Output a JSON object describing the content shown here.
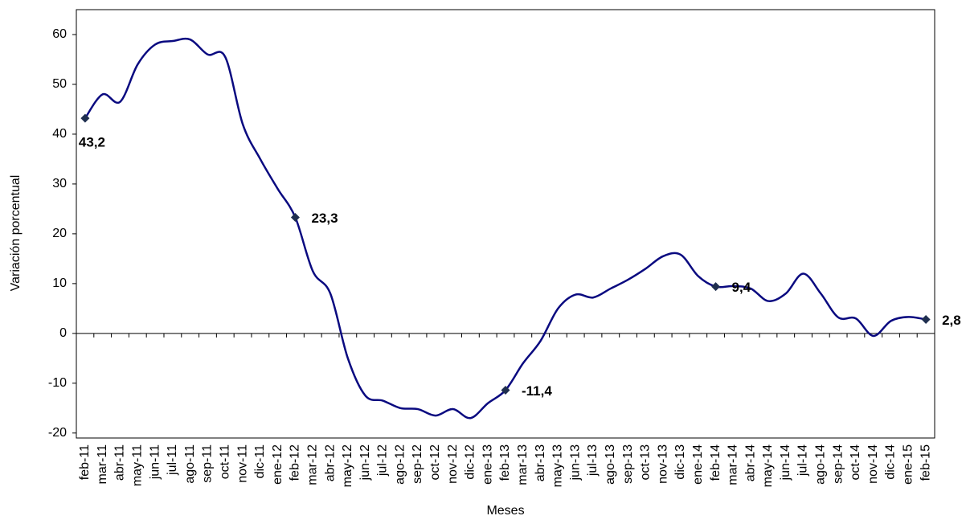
{
  "chart_data": {
    "type": "line",
    "y_label": "Variación porcentual",
    "x_label": "Meses",
    "categories": [
      "feb-11",
      "mar-11",
      "abr-11",
      "may-11",
      "jun-11",
      "jul-11",
      "ago-11",
      "sep-11",
      "oct-11",
      "nov-11",
      "dic-11",
      "ene-12",
      "feb-12",
      "mar-12",
      "abr-12",
      "may-12",
      "jun-12",
      "jul-12",
      "ago-12",
      "sep-12",
      "oct-12",
      "nov-12",
      "dic-12",
      "ene-13",
      "feb-13",
      "mar-13",
      "abr-13",
      "may-13",
      "jun-13",
      "jul-13",
      "ago-13",
      "sep-13",
      "oct-13",
      "nov-13",
      "dic-13",
      "ene-14",
      "feb-14",
      "mar-14",
      "abr-14",
      "may-14",
      "jun-14",
      "jul-14",
      "ago-14",
      "sep-14",
      "oct-14",
      "nov-14",
      "dic-14",
      "ene-15",
      "feb-15"
    ],
    "values": [
      43.2,
      48,
      46.5,
      54,
      58,
      58.7,
      59,
      56,
      55.5,
      42,
      35,
      29,
      23.3,
      12.5,
      8,
      -5,
      -12.5,
      -13.5,
      -15,
      -15.2,
      -16.5,
      -15.2,
      -17,
      -14,
      -11.4,
      -6,
      -1.5,
      5,
      7.8,
      7.2,
      9,
      10.8,
      13,
      15.5,
      15.8,
      11.5,
      9.4,
      9.5,
      9,
      6.5,
      8,
      12,
      8,
      3.2,
      3,
      -0.5,
      2.5,
      3.3,
      2.8
    ],
    "value_labels": [
      "43,2",
      null,
      null,
      null,
      null,
      null,
      null,
      null,
      null,
      null,
      null,
      null,
      "23,3",
      null,
      null,
      null,
      null,
      null,
      null,
      null,
      null,
      null,
      null,
      null,
      "-11,4",
      null,
      null,
      null,
      null,
      null,
      null,
      null,
      null,
      null,
      null,
      null,
      "9,4",
      null,
      null,
      null,
      null,
      null,
      null,
      null,
      null,
      null,
      null,
      null,
      "2,8"
    ],
    "color": "#0a0a80",
    "marker_color": "#1f2f4f",
    "ylim": [
      -21,
      65
    ],
    "yticks": [
      -20,
      -10,
      0,
      10,
      20,
      30,
      40,
      50,
      60
    ]
  }
}
